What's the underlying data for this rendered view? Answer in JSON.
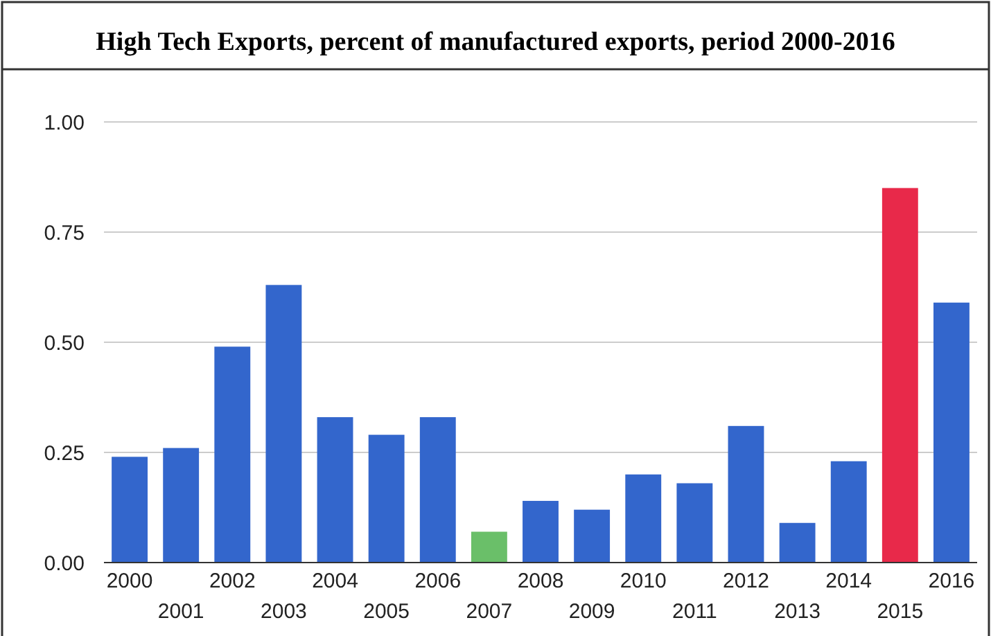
{
  "chart_data": {
    "type": "bar",
    "title": "High Tech Exports, percent of manufactured exports, period 2000-2016",
    "categories": [
      "2000",
      "2001",
      "2002",
      "2003",
      "2004",
      "2005",
      "2006",
      "2007",
      "2008",
      "2009",
      "2010",
      "2011",
      "2012",
      "2013",
      "2014",
      "2015",
      "2016"
    ],
    "values": [
      0.24,
      0.26,
      0.49,
      0.63,
      0.33,
      0.29,
      0.33,
      0.07,
      0.14,
      0.12,
      0.2,
      0.18,
      0.31,
      0.09,
      0.23,
      0.85,
      0.59
    ],
    "colors": [
      "#3366cc",
      "#3366cc",
      "#3366cc",
      "#3366cc",
      "#3366cc",
      "#3366cc",
      "#3366cc",
      "#6abf69",
      "#3366cc",
      "#3366cc",
      "#3366cc",
      "#3366cc",
      "#3366cc",
      "#3366cc",
      "#3366cc",
      "#e8294a",
      "#3366cc"
    ],
    "ylim": [
      0,
      1
    ],
    "yticks": [
      {
        "value": 0,
        "label": "0.00"
      },
      {
        "value": 0.25,
        "label": "0.25"
      },
      {
        "value": 0.5,
        "label": "0.50"
      },
      {
        "value": 0.75,
        "label": "0.75"
      },
      {
        "value": 1,
        "label": "1.00"
      }
    ],
    "grid": "y"
  }
}
